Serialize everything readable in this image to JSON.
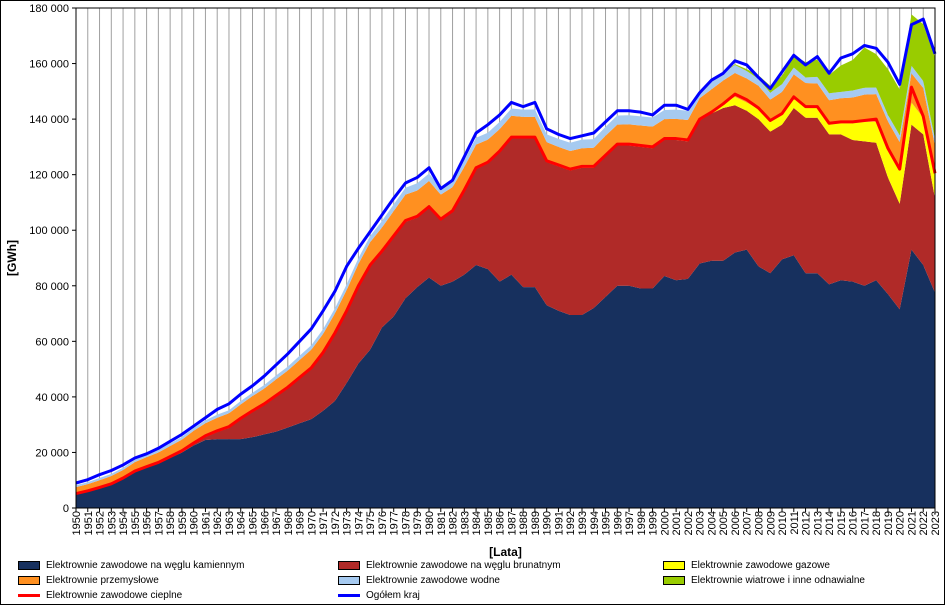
{
  "chart_data": {
    "type": "area",
    "title": "",
    "xlabel": "[Lata]",
    "ylabel": "[GWh]",
    "ylim": [
      0,
      180000
    ],
    "yticks": [
      0,
      20000,
      40000,
      60000,
      80000,
      100000,
      120000,
      140000,
      160000,
      180000
    ],
    "ytick_labels": [
      "0",
      "20 000",
      "40 000",
      "60 000",
      "80 000",
      "100 000",
      "120 000",
      "140 000",
      "160 000",
      "180 000"
    ],
    "grid": "vertical",
    "legend_position": "bottom",
    "x": [
      1950,
      1951,
      1952,
      1953,
      1954,
      1955,
      1956,
      1957,
      1958,
      1959,
      1960,
      1961,
      1962,
      1963,
      1964,
      1965,
      1966,
      1967,
      1968,
      1969,
      1970,
      1971,
      1972,
      1973,
      1974,
      1975,
      1976,
      1977,
      1978,
      1979,
      1980,
      1981,
      1982,
      1983,
      1984,
      1985,
      1986,
      1987,
      1988,
      1989,
      1990,
      1991,
      1992,
      1993,
      1994,
      1995,
      1996,
      1997,
      1998,
      1999,
      2000,
      2001,
      2002,
      2003,
      2004,
      2005,
      2006,
      2007,
      2008,
      2009,
      2010,
      2011,
      2012,
      2013,
      2014,
      2015,
      2016,
      2017,
      2018,
      2019,
      2020,
      2021,
      2022,
      2023
    ],
    "series": [
      {
        "name": "Elektrownie  zawodowe na węglu kamiennym",
        "color": "#17305e",
        "kind": "area",
        "values": [
          5000,
          6000,
          7200,
          8500,
          10500,
          13000,
          14500,
          16000,
          18000,
          20000,
          22500,
          24500,
          24800,
          24800,
          24800,
          25500,
          26500,
          27500,
          29000,
          30500,
          32000,
          35000,
          38500,
          45000,
          52000,
          57000,
          65000,
          69000,
          75500,
          79500,
          83000,
          80000,
          81500,
          84000,
          87500,
          86000,
          81500,
          84000,
          79500,
          79500,
          73000,
          71000,
          69500,
          69500,
          72000,
          76000,
          80000,
          80000,
          79000,
          79000,
          83500,
          82000,
          82500,
          88000,
          89000,
          89000,
          92000,
          93000,
          87000,
          84500,
          89500,
          91000,
          84500,
          84500,
          80500,
          82000,
          81500,
          80000,
          82000,
          77000,
          71500,
          93000,
          87500,
          77500
        ]
      },
      {
        "name": "Elektrownie  zawodowe na węglu brunatnym",
        "color": "#b02a28",
        "kind": "area",
        "values": [
          0,
          0,
          0,
          0,
          0,
          0,
          0,
          0,
          0,
          0,
          500,
          1000,
          2500,
          4000,
          7000,
          9000,
          10500,
          12500,
          14000,
          16000,
          18000,
          20500,
          24000,
          25500,
          27500,
          30000,
          27000,
          28500,
          27500,
          25000,
          25000,
          23500,
          25000,
          30000,
          34500,
          38000,
          46500,
          49000,
          53500,
          53500,
          51500,
          52000,
          52000,
          53000,
          50500,
          50500,
          50500,
          50500,
          51000,
          50500,
          49000,
          50500,
          49500,
          51500,
          53000,
          55000,
          53000,
          50000,
          53000,
          51000,
          48500,
          53000,
          56000,
          56000,
          54000,
          52500,
          51000,
          52000,
          49500,
          42000,
          38000,
          45000,
          47000,
          34000
        ]
      },
      {
        "name": "Elektrownie  zawodowe gazowe",
        "color": "#ffff00",
        "kind": "area",
        "values": [
          0,
          0,
          0,
          0,
          0,
          0,
          0,
          0,
          0,
          0,
          0,
          0,
          0,
          0,
          0,
          0,
          0,
          0,
          0,
          0,
          0,
          0,
          0,
          0,
          0,
          0,
          0,
          0,
          0,
          0,
          0,
          0,
          0,
          0,
          0,
          0,
          0,
          0,
          0,
          0,
          0,
          0,
          0,
          0,
          0,
          0,
          0,
          0,
          0,
          0,
          0,
          0,
          0,
          0,
          500,
          1500,
          3000,
          3000,
          3500,
          3500,
          3500,
          3500,
          3500,
          3500,
          3500,
          4000,
          6000,
          7000,
          7500,
          10000,
          12000,
          8000,
          6000,
          8500
        ]
      },
      {
        "name": "Elektrownie  cieplne",
        "color": "#ff0000",
        "kind": "line",
        "values": [
          5200,
          6200,
          7400,
          8700,
          10800,
          13300,
          14900,
          16400,
          18500,
          20600,
          23400,
          26000,
          27800,
          29300,
          32300,
          35000,
          37500,
          40500,
          43500,
          47000,
          50500,
          56000,
          63000,
          71000,
          80000,
          87500,
          92500,
          98000,
          103500,
          105000,
          108500,
          104000,
          107000,
          114500,
          122500,
          124500,
          128500,
          133500,
          133500,
          133500,
          125000,
          123500,
          122000,
          123000,
          123000,
          127000,
          131000,
          131000,
          130500,
          130000,
          133000,
          133000,
          132500,
          140000,
          142500,
          145500,
          149000,
          147000,
          144000,
          139500,
          142000,
          148000,
          144500,
          144500,
          138500,
          139000,
          139000,
          139500,
          140000,
          129500,
          122000,
          151500,
          141000,
          120500
        ]
      },
      {
        "name": "Elektrownie  przemysłowe",
        "color": "#ff9020",
        "kind": "area",
        "values": [
          2500,
          2600,
          2800,
          3000,
          3200,
          3500,
          3800,
          4000,
          4300,
          4600,
          4800,
          5000,
          5200,
          5300,
          5500,
          5800,
          6000,
          6300,
          6500,
          6800,
          7000,
          7200,
          7500,
          8000,
          8400,
          8700,
          9000,
          9400,
          9800,
          9800,
          9700,
          9300,
          9000,
          8800,
          8800,
          8600,
          8400,
          8200,
          7800,
          7800,
          7200,
          7000,
          7000,
          7000,
          7200,
          7500,
          7500,
          7600,
          7700,
          7800,
          7500,
          7600,
          7700,
          8000,
          8200,
          8400,
          8600,
          8600,
          8500,
          8000,
          8300,
          8600,
          9000,
          8800,
          8800,
          9000,
          9300,
          9800,
          10000,
          10200,
          10200,
          10500,
          10700,
          10500
        ]
      },
      {
        "name": "Elektrownie  zawodowe wodne",
        "color": "#a6caf0",
        "kind": "area",
        "values": [
          700,
          700,
          800,
          800,
          800,
          900,
          900,
          900,
          1000,
          1000,
          1000,
          1100,
          1100,
          1100,
          1200,
          1200,
          1300,
          1400,
          1400,
          1500,
          1600,
          1700,
          1800,
          2000,
          2000,
          2200,
          2300,
          2400,
          2500,
          2600,
          2700,
          2600,
          2600,
          2500,
          2500,
          2500,
          2600,
          2600,
          2600,
          2700,
          2800,
          2900,
          3000,
          3100,
          3100,
          3200,
          3300,
          3300,
          3300,
          3300,
          3300,
          3300,
          3300,
          2600,
          2600,
          2800,
          2900,
          2700,
          2500,
          2500,
          2800,
          2500,
          2000,
          2400,
          2500,
          2300,
          2500,
          2500,
          2400,
          2300,
          2500,
          2700,
          2500,
          2300
        ]
      },
      {
        "name": "Elektrownie  wiatrowe i inne odnawialne",
        "color": "#99cc00",
        "kind": "area",
        "values": [
          0,
          0,
          0,
          0,
          0,
          0,
          0,
          0,
          0,
          0,
          0,
          0,
          0,
          0,
          0,
          0,
          0,
          0,
          0,
          0,
          0,
          0,
          0,
          0,
          0,
          0,
          0,
          0,
          0,
          0,
          0,
          0,
          0,
          0,
          0,
          0,
          0,
          0,
          0,
          0,
          0,
          0,
          0,
          0,
          0,
          0,
          0,
          0,
          0,
          0,
          0,
          0,
          0,
          0,
          0,
          0,
          300,
          700,
          1300,
          2500,
          3000,
          4300,
          5500,
          6200,
          6600,
          9500,
          11000,
          14500,
          12000,
          16500,
          16500,
          18500,
          20500,
          29500
        ]
      },
      {
        "name": "Ogółem  kraj",
        "color": "#0000ff",
        "kind": "line",
        "values": [
          9000,
          10200,
          12000,
          13500,
          15500,
          18000,
          19500,
          21500,
          24000,
          26500,
          29500,
          32500,
          35500,
          37500,
          41000,
          44000,
          47500,
          51500,
          55500,
          60000,
          64500,
          71000,
          78000,
          87000,
          93500,
          99500,
          105500,
          111500,
          117000,
          119000,
          122500,
          115000,
          118000,
          126500,
          135000,
          138000,
          141500,
          146000,
          144500,
          146000,
          136500,
          134500,
          133000,
          134000,
          135000,
          139000,
          143000,
          143000,
          142500,
          141500,
          145000,
          145000,
          143500,
          149500,
          154000,
          156500,
          161000,
          159500,
          155000,
          151000,
          157000,
          163000,
          159500,
          162500,
          156500,
          162000,
          163500,
          166500,
          165500,
          160500,
          152500,
          174000,
          176000,
          163500
        ]
      }
    ],
    "legend": [
      "Elektrownie  zawodowe na węglu kamiennym",
      "Elektrownie  zawodowe na węglu brunatnym",
      "Elektrownie  zawodowe gazowe",
      "Elektrownie  przemysłowe",
      "Elektrownie  zawodowe wodne",
      "Elektrownie  wiatrowe i inne odnawialne",
      "Elektrownie  zawodowe cieplne",
      "Ogółem  kraj"
    ]
  }
}
